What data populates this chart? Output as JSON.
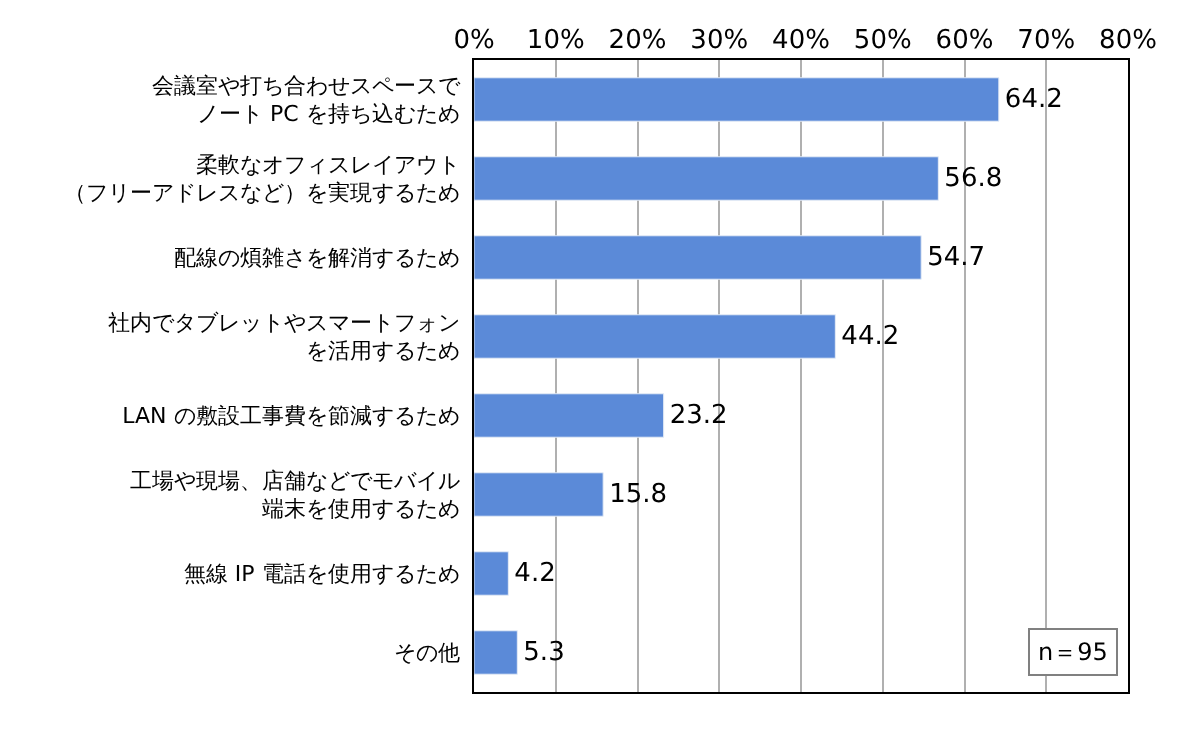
{
  "chart_data": {
    "type": "bar",
    "orientation": "horizontal",
    "categories": [
      "会議室や打ち合わせスペースでノート PC を持ち込むため",
      "柔軟なオフィスレイアウト（フリーアドレスなど）を実現するため",
      "配線の煩雑さを解消するため",
      "社内でタブレットやスマートフォンを活用するため",
      "LAN の敷設工事費を節減するため",
      "工場や現場、店舗などでモバイル端末を使用するため",
      "無線 IP 電話を使用するため",
      "その他"
    ],
    "values": [
      64.2,
      56.8,
      54.7,
      44.2,
      23.2,
      15.8,
      4.2,
      5.3
    ],
    "color": "#5b8ad8",
    "data_labels": true,
    "xlim": [
      0,
      80
    ],
    "xticks": [
      {
        "value": 0,
        "label": "0%"
      },
      {
        "value": 10,
        "label": "10%"
      },
      {
        "value": 20,
        "label": "20%"
      },
      {
        "value": 30,
        "label": "30%"
      },
      {
        "value": 40,
        "label": "40%"
      },
      {
        "value": 50,
        "label": "50%"
      },
      {
        "value": 60,
        "label": "60%"
      },
      {
        "value": 70,
        "label": "70%"
      },
      {
        "value": 80,
        "label": "80%"
      }
    ],
    "grid": "x",
    "annotations": [
      "n＝95"
    ]
  }
}
